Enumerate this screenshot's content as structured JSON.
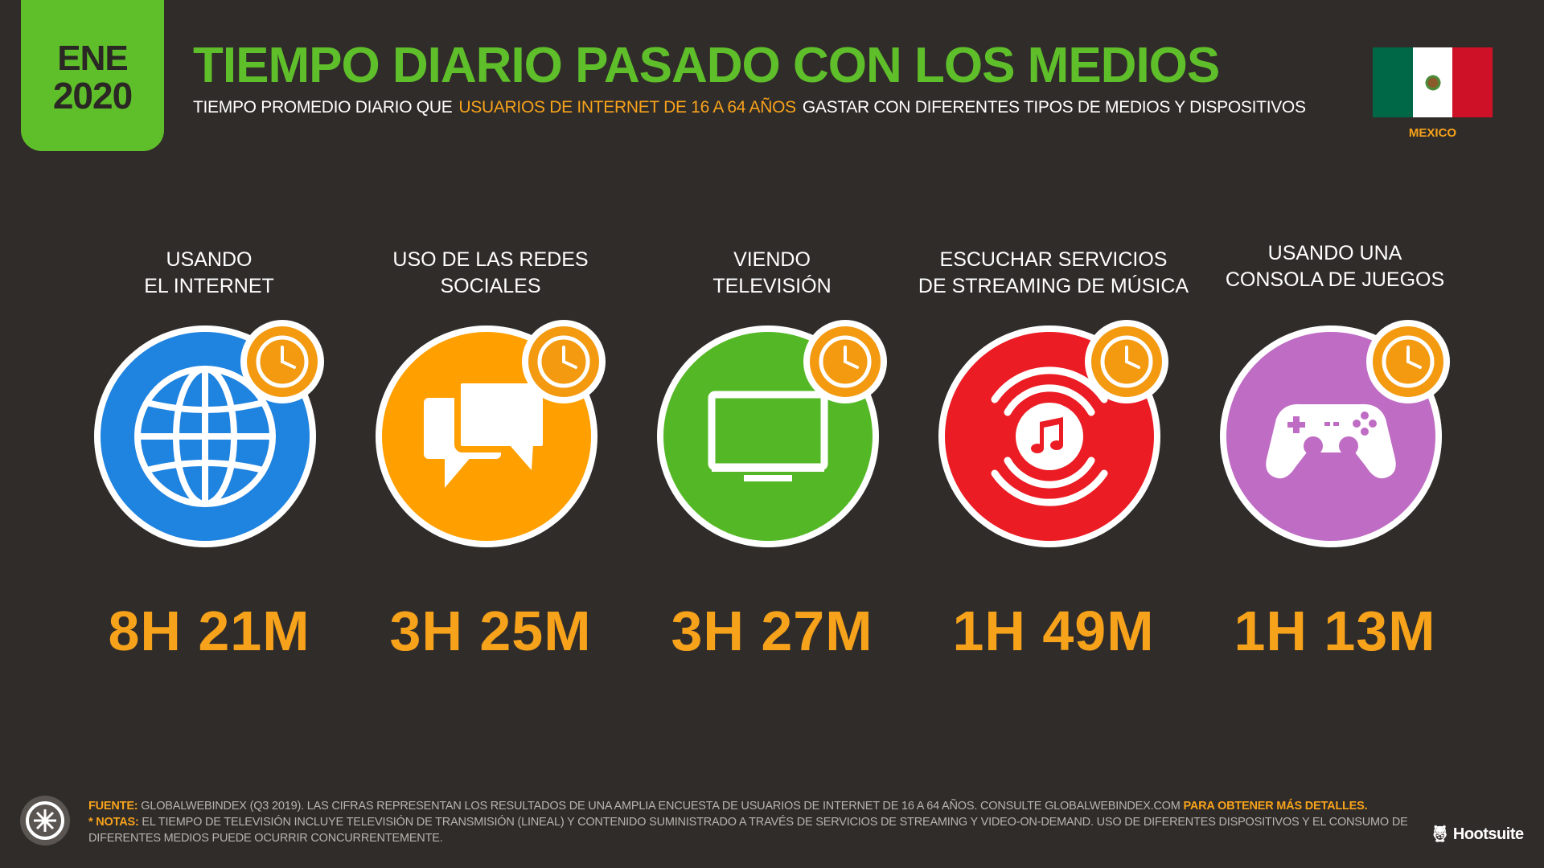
{
  "badge": {
    "month": "ENE",
    "year": "2020"
  },
  "header": {
    "title": "TIEMPO DIARIO PASADO CON LOS MEDIOS",
    "subtitle_pre": "TIEMPO PROMEDIO DIARIO QUE",
    "subtitle_highlight": "USUARIOS DE INTERNET DE 16 A 64 AÑOS",
    "subtitle_post": "GASTAR CON DIFERENTES TIPOS DE MEDIOS Y DISPOSITIVOS"
  },
  "country": {
    "name": "MEXICO",
    "flag_icon": "mexico-flag-icon"
  },
  "colors": {
    "background": "#302c29",
    "accent_green": "#5fbf2a",
    "accent_orange": "#f7a21b",
    "internet": "#1f83e0",
    "social": "#ff9f00",
    "tv": "#54b826",
    "music": "#ec1c24",
    "gaming": "#bf6cc4"
  },
  "stats": [
    {
      "label_1": "USANDO",
      "label_2": "EL INTERNET",
      "value": "8H 21M",
      "icon": "globe-icon"
    },
    {
      "label_1": "USO DE LAS REDES",
      "label_2": "SOCIALES",
      "value": "3H 25M",
      "icon": "chat-bubbles-icon"
    },
    {
      "label_1": "VIENDO",
      "label_2": "TELEVISIÓN",
      "value": "3H 27M",
      "icon": "television-icon"
    },
    {
      "label_1": "ESCUCHAR SERVICIOS",
      "label_2": "DE STREAMING DE MÚSICA",
      "value": "1H 49M",
      "icon": "music-streaming-icon"
    },
    {
      "label_1": "USANDO UNA",
      "label_2": "CONSOLA DE JUEGOS",
      "value": "1H 13M",
      "icon": "gamepad-icon"
    }
  ],
  "footer": {
    "source_key": "FUENTE:",
    "source_text": "GLOBALWEBINDEX (Q3 2019). LAS CIFRAS REPRESENTAN LOS RESULTADOS DE UNA AMPLIA ENCUESTA DE USUARIOS DE INTERNET DE 16 A 64 AÑOS. CONSULTE GLOBALWEBINDEX.COM",
    "source_link": "PARA OBTENER MÁS DETALLES.",
    "notes_key": "* NOTAS:",
    "notes_text": "EL TIEMPO DE TELEVISIÓN INCLUYE TELEVISIÓN DE TRANSMISIÓN (LINEAL) Y CONTENIDO SUMINISTRADO A TRAVÉS DE SERVICIOS DE STREAMING Y VIDEO-ON-DEMAND. USO DE DIFERENTES DISPOSITIVOS Y EL CONSUMO DE DIFERENTES MEDIOS PUEDE OCURRIR CONCURRENTEMENTE.",
    "brand": "Hootsuite"
  }
}
